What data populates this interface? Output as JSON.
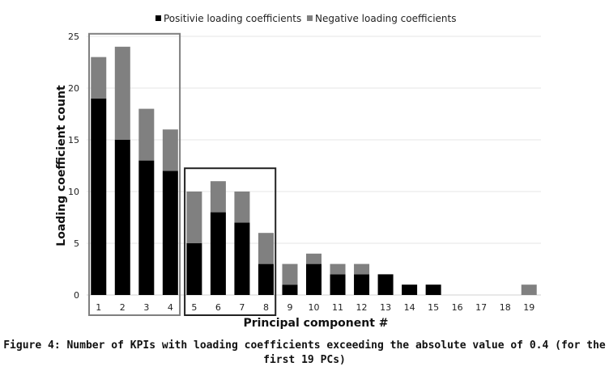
{
  "chart_data": {
    "type": "bar",
    "stacked": true,
    "categories": [
      "1",
      "2",
      "3",
      "4",
      "5",
      "6",
      "7",
      "8",
      "9",
      "10",
      "11",
      "12",
      "13",
      "14",
      "15",
      "16",
      "17",
      "18",
      "19"
    ],
    "series": [
      {
        "name": "Positivie loading coefficients",
        "color": "#000000",
        "values": [
          19,
          15,
          13,
          12,
          5,
          8,
          7,
          3,
          1,
          3,
          2,
          2,
          2,
          1,
          1,
          0,
          0,
          0,
          0
        ]
      },
      {
        "name": "Negative loading coefficients",
        "color": "#808080",
        "values": [
          4,
          9,
          5,
          4,
          5,
          3,
          3,
          3,
          2,
          1,
          1,
          1,
          0,
          0,
          0,
          0,
          0,
          0,
          1
        ]
      }
    ],
    "xlabel": "Principal component #",
    "ylabel": "Loading coefficient count",
    "ylim": [
      0,
      25
    ],
    "yticks": [
      0,
      5,
      10,
      15,
      20,
      25
    ],
    "grid": true,
    "legend_position": "top-center",
    "highlight_boxes": [
      {
        "from": "1",
        "to": "4"
      },
      {
        "from": "5",
        "to": "8"
      }
    ]
  },
  "caption": {
    "line1": "Figure 4: Number of KPIs with loading coefficients exceeding the absolute value of 0.4 (for the",
    "line2": "first 19 PCs)"
  }
}
